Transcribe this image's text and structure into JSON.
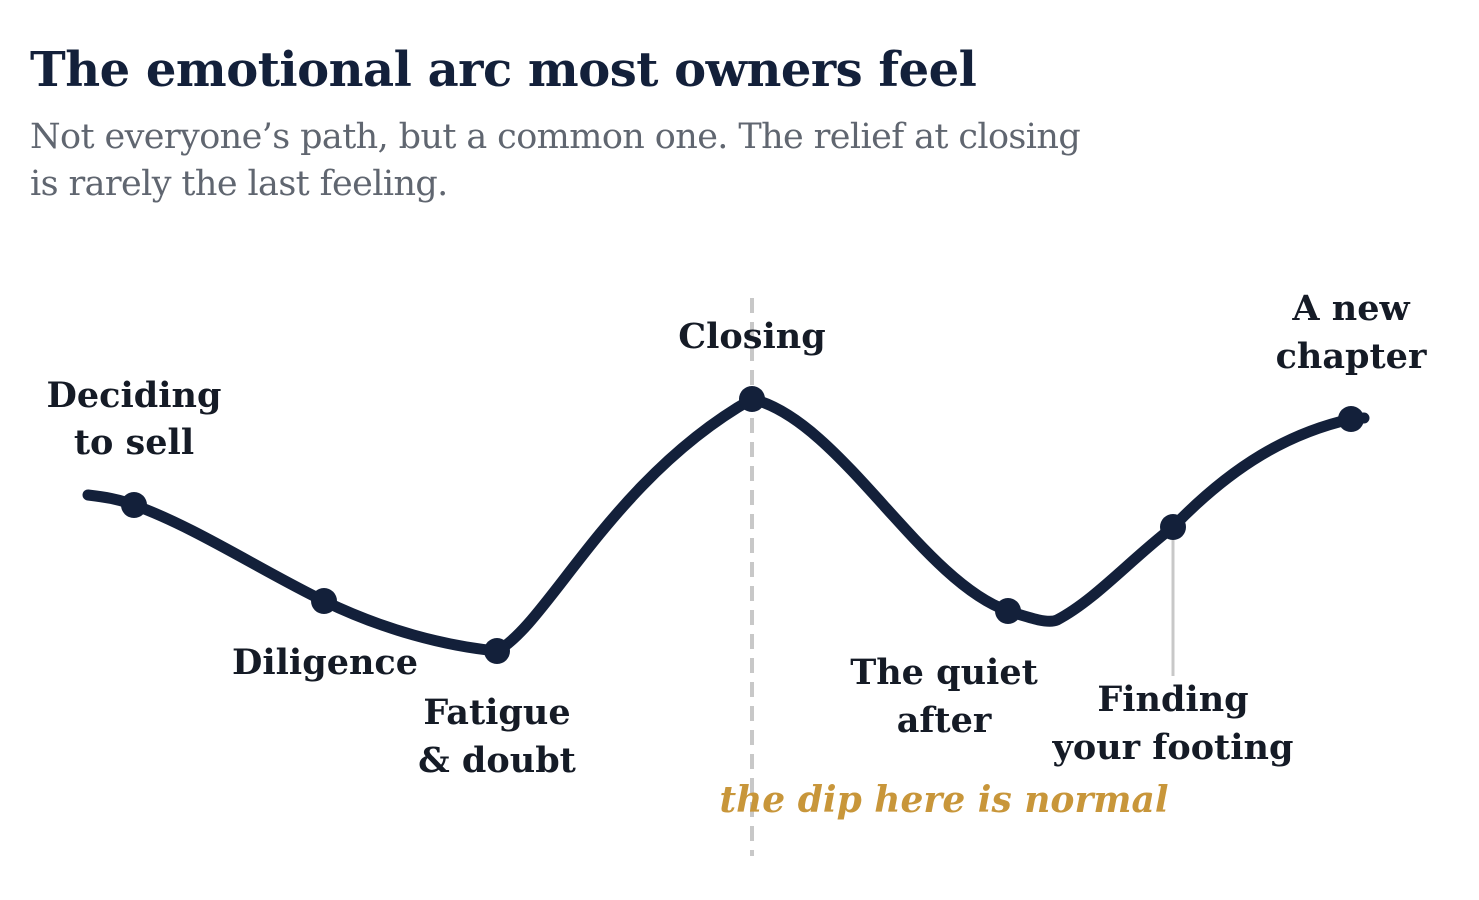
{
  "header": {
    "title": "The emotional arc most owners feel",
    "subtitle_line1": "Not everyone’s path, but a common one. The relief at closing",
    "subtitle_line2": "is rarely the last feeling."
  },
  "stages": [
    {
      "line1": "Deciding",
      "line2": "to sell"
    },
    {
      "line1": "Diligence",
      "line2": ""
    },
    {
      "line1": "Fatigue",
      "line2": "& doubt"
    },
    {
      "line1": "Closing",
      "line2": ""
    },
    {
      "line1": "The quiet",
      "line2": "after"
    },
    {
      "line1": "Finding",
      "line2": "your footing"
    },
    {
      "line1": "A new",
      "line2": "chapter"
    }
  ],
  "annotation": {
    "text": "the dip here is normal"
  },
  "colors": {
    "curve": "#13203a",
    "annotation": "#c8963a",
    "divider": "#c8c8c8",
    "text": "#151b26"
  }
}
